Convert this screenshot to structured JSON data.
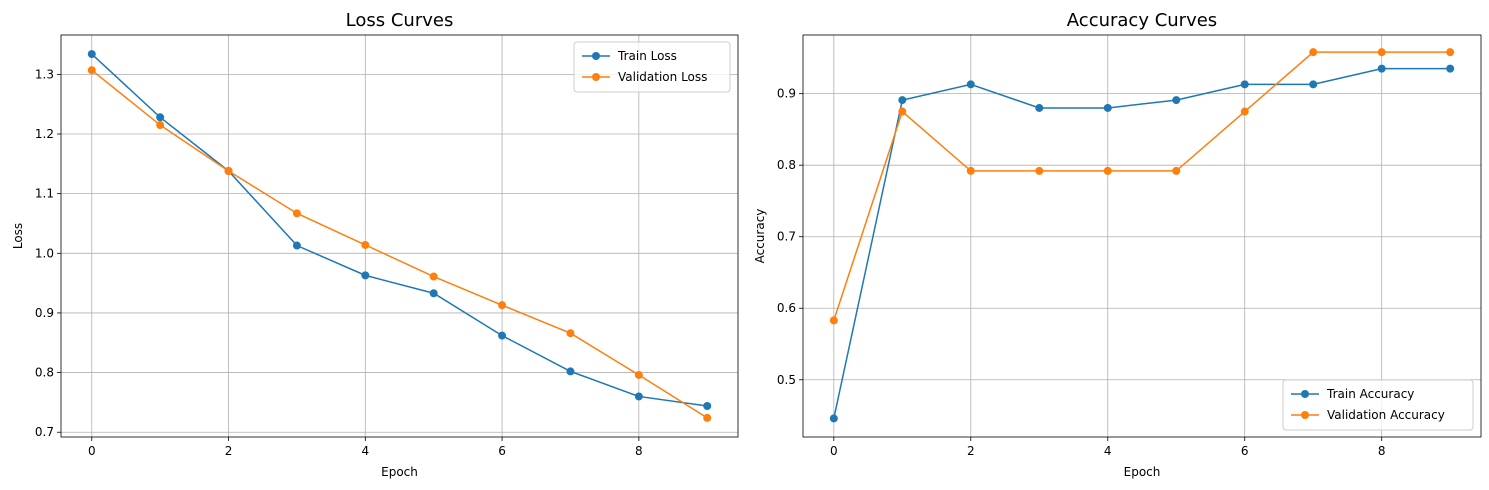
{
  "chart_data": [
    {
      "type": "line",
      "title": "Loss Curves",
      "xlabel": "Epoch",
      "ylabel": "Loss",
      "x": [
        0,
        1,
        2,
        3,
        4,
        5,
        6,
        7,
        8,
        9
      ],
      "xlim": [
        -0.45,
        9.45
      ],
      "ylim": [
        0.692,
        1.366
      ],
      "xticks": [
        0,
        2,
        4,
        6,
        8
      ],
      "yticks": [
        0.7,
        0.8,
        0.9,
        1.0,
        1.1,
        1.2,
        1.3
      ],
      "ytick_labels": [
        "0.7",
        "0.8",
        "0.9",
        "1.0",
        "1.1",
        "1.2",
        "1.3"
      ],
      "grid": true,
      "legend_position": "upper right",
      "series": [
        {
          "name": "Train Loss",
          "color": "#1f77b4",
          "values": [
            1.334,
            1.228,
            1.138,
            1.013,
            0.963,
            0.933,
            0.862,
            0.802,
            0.76,
            0.744
          ]
        },
        {
          "name": "Validation Loss",
          "color": "#ff7f0e",
          "values": [
            1.307,
            1.215,
            1.138,
            1.067,
            1.014,
            0.961,
            0.913,
            0.866,
            0.796,
            0.724
          ]
        }
      ]
    },
    {
      "type": "line",
      "title": "Accuracy Curves",
      "xlabel": "Epoch",
      "ylabel": "Accuracy",
      "x": [
        0,
        1,
        2,
        3,
        4,
        5,
        6,
        7,
        8,
        9
      ],
      "xlim": [
        -0.45,
        9.45
      ],
      "ylim": [
        0.42,
        0.982
      ],
      "xticks": [
        0,
        2,
        4,
        6,
        8
      ],
      "yticks": [
        0.5,
        0.6,
        0.7,
        0.8,
        0.9
      ],
      "ytick_labels": [
        "0.5",
        "0.6",
        "0.7",
        "0.8",
        "0.9"
      ],
      "grid": true,
      "legend_position": "lower right",
      "series": [
        {
          "name": "Train Accuracy",
          "color": "#1f77b4",
          "values": [
            0.446,
            0.891,
            0.913,
            0.88,
            0.88,
            0.891,
            0.913,
            0.913,
            0.935,
            0.935
          ]
        },
        {
          "name": "Validation Accuracy",
          "color": "#ff7f0e",
          "values": [
            0.583,
            0.875,
            0.792,
            0.792,
            0.792,
            0.792,
            0.875,
            0.958,
            0.958,
            0.958
          ]
        }
      ]
    }
  ]
}
